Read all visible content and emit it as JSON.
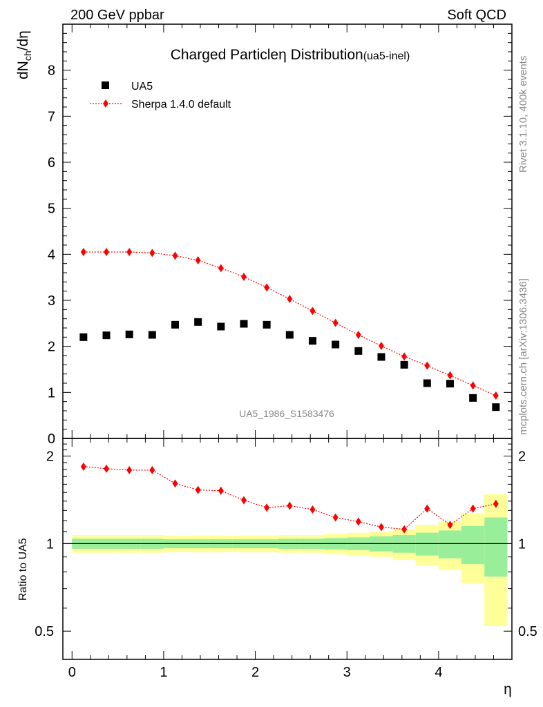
{
  "header": {
    "left": "200 GeV ppbar",
    "right": "Soft QCD"
  },
  "side": {
    "rivet": "Rivet 3.1.10,  400k events",
    "mcplots": "mcplots.cern.ch [arXiv:1306.3436]"
  },
  "chart_data": {
    "type": "scatter",
    "title": "Charged Particle",
    "title_symbol": "η",
    "title_mid": " Distribution",
    "title_suffix": "(ua5-inel)",
    "analysis_label": "UA5_1986_S1583476",
    "xlabel": "η",
    "ylabel_main": {
      "d": "dN",
      "sub": "ch",
      "tail": "/dη"
    },
    "ylabel_ratio": "Ratio to UA5",
    "xlim": [
      -0.1,
      4.8
    ],
    "ylim_main": [
      0,
      9
    ],
    "ylim_ratio": [
      0.4,
      2.3
    ],
    "x_ticks": [
      "0",
      "1",
      "2",
      "3",
      "4"
    ],
    "y_ticks_main": [
      "0",
      "1",
      "2",
      "3",
      "4",
      "5",
      "6",
      "7",
      "8"
    ],
    "y_ticks_ratio": [
      "0.5",
      "1",
      "2"
    ],
    "legend": [
      "UA5",
      "Sherpa 1.4.0 default"
    ],
    "x": [
      0.125,
      0.375,
      0.625,
      0.875,
      1.125,
      1.375,
      1.625,
      1.875,
      2.125,
      2.375,
      2.625,
      2.875,
      3.125,
      3.375,
      3.625,
      3.875,
      4.125,
      4.375,
      4.625
    ],
    "series": [
      {
        "name": "UA5",
        "color": "#000000",
        "values": [
          2.2,
          2.24,
          2.26,
          2.25,
          2.47,
          2.53,
          2.43,
          2.49,
          2.47,
          2.25,
          2.12,
          2.04,
          1.9,
          1.77,
          1.6,
          1.2,
          1.19,
          0.88,
          0.68
        ]
      },
      {
        "name": "Sherpa 1.4.0 default",
        "color": "#ff0000",
        "values": [
          4.05,
          4.05,
          4.05,
          4.03,
          3.97,
          3.87,
          3.7,
          3.51,
          3.28,
          3.03,
          2.77,
          2.51,
          2.25,
          2.01,
          1.78,
          1.58,
          1.37,
          1.15,
          0.93
        ]
      }
    ],
    "ratio": [
      1.84,
      1.81,
      1.79,
      1.79,
      1.61,
      1.53,
      1.52,
      1.41,
      1.33,
      1.35,
      1.31,
      1.23,
      1.19,
      1.14,
      1.12,
      1.32,
      1.16,
      1.32,
      1.37
    ],
    "uncertainty": {
      "inner": [
        0.04,
        0.04,
        0.04,
        0.04,
        0.035,
        0.035,
        0.035,
        0.035,
        0.035,
        0.04,
        0.04,
        0.045,
        0.05,
        0.06,
        0.07,
        0.09,
        0.11,
        0.15,
        0.23
      ],
      "outer": [
        0.07,
        0.07,
        0.07,
        0.07,
        0.065,
        0.065,
        0.065,
        0.065,
        0.065,
        0.07,
        0.07,
        0.08,
        0.09,
        0.1,
        0.12,
        0.16,
        0.19,
        0.27,
        0.48
      ]
    }
  }
}
